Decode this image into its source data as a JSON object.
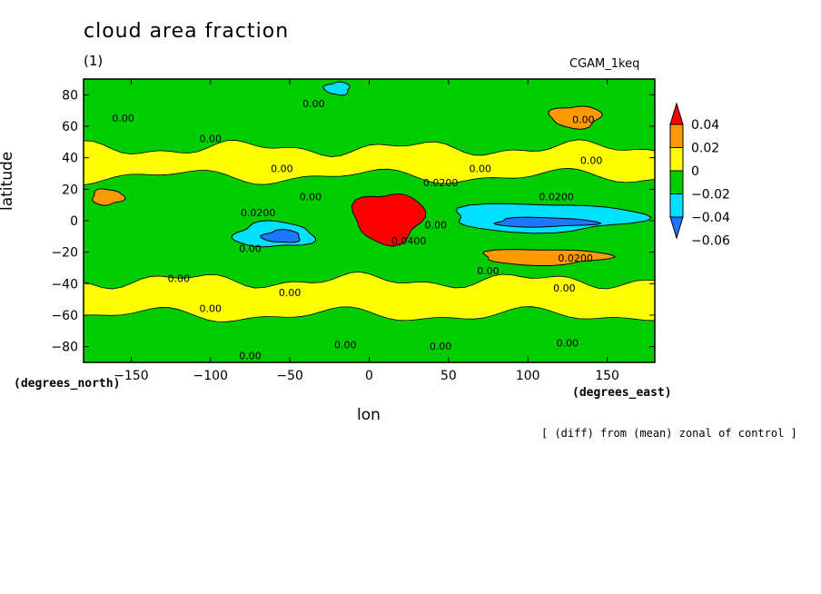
{
  "chart_data": {
    "type": "heatmap",
    "title": "cloud area fraction",
    "subtitle": "(1)",
    "run_label": "CGAM_1keq",
    "xlabel": "lon",
    "ylabel": "latitude",
    "x_units": "(degrees_east)",
    "y_units": "(degrees_north)",
    "note": "[ (diff) from (mean) zonal of control ]",
    "xlim": [
      -180,
      180
    ],
    "ylim": [
      -90,
      90
    ],
    "x_ticks": [
      -150,
      -100,
      -50,
      0,
      50,
      100,
      150
    ],
    "y_ticks": [
      -80,
      -60,
      -40,
      -20,
      0,
      20,
      40,
      60,
      80
    ],
    "colorbar": {
      "levels": [
        -0.06,
        -0.04,
        -0.02,
        0,
        0.02,
        0.04
      ],
      "labels": [
        "-0.06",
        "-0.04",
        "-0.02",
        "0",
        "0.02",
        "0.04"
      ],
      "colors": [
        "#1e78ff",
        "#00e1ff",
        "#00cc00",
        "#ffff00",
        "#ff9900",
        "#ff0000"
      ]
    },
    "contour_labels": [
      {
        "text": "0.00",
        "lon": -155,
        "lat": 63
      },
      {
        "text": "0.00",
        "lon": -35,
        "lat": 72
      },
      {
        "text": "0.00",
        "lon": 135,
        "lat": 62
      },
      {
        "text": "0.00",
        "lon": -100,
        "lat": 50
      },
      {
        "text": "0.00",
        "lon": 140,
        "lat": 36
      },
      {
        "text": "0.00",
        "lon": -55,
        "lat": 31
      },
      {
        "text": "0.00",
        "lon": 70,
        "lat": 31
      },
      {
        "text": "0.0200",
        "lon": 45,
        "lat": 22
      },
      {
        "text": "0.0200",
        "lon": 118,
        "lat": 13
      },
      {
        "text": "0.00",
        "lon": -37,
        "lat": 13
      },
      {
        "text": "0.0200",
        "lon": -70,
        "lat": 3
      },
      {
        "text": "0.0400",
        "lon": 25,
        "lat": -15
      },
      {
        "text": "0.00",
        "lon": 42,
        "lat": -5
      },
      {
        "text": "0.00",
        "lon": -75,
        "lat": -20
      },
      {
        "text": "0.0200",
        "lon": 130,
        "lat": -26
      },
      {
        "text": "0.00",
        "lon": -120,
        "lat": -39
      },
      {
        "text": "0.00",
        "lon": 75,
        "lat": -34
      },
      {
        "text": "0.00",
        "lon": 123,
        "lat": -45
      },
      {
        "text": "0.00",
        "lon": -50,
        "lat": -48
      },
      {
        "text": "0.00",
        "lon": -100,
        "lat": -58
      },
      {
        "text": "0.00",
        "lon": -15,
        "lat": -81
      },
      {
        "text": "0.00",
        "lon": 45,
        "lat": -82
      },
      {
        "text": "0.00",
        "lon": 125,
        "lat": -80
      },
      {
        "text": "0.00",
        "lon": -75,
        "lat": -88
      }
    ],
    "features": [
      {
        "kind": "band",
        "level": "0",
        "lat_from": 28,
        "lat_to": 46,
        "note": "northern subtropical positive band"
      },
      {
        "kind": "band",
        "level": "0",
        "lat_from": -60,
        "lat_to": -38,
        "note": "southern mid-latitude positive band"
      },
      {
        "kind": "blob",
        "level": "0.04",
        "lon": 12,
        "lat": 2,
        "rx": 22,
        "ry": 16
      },
      {
        "kind": "blob",
        "level": "-0.04",
        "lon": 110,
        "lat": 2,
        "rx": 60,
        "ry": 9
      },
      {
        "kind": "blob",
        "level": "-0.06",
        "lon": 110,
        "lat": -1,
        "rx": 32,
        "ry": 3
      },
      {
        "kind": "blob",
        "level": "-0.04",
        "lon": -60,
        "lat": -9,
        "rx": 25,
        "ry": 8
      },
      {
        "kind": "blob",
        "level": "-0.06",
        "lon": -55,
        "lat": -10,
        "rx": 12,
        "ry": 4
      },
      {
        "kind": "blob",
        "level": "-0.04",
        "lon": -20,
        "lat": 84,
        "rx": 8,
        "ry": 4
      },
      {
        "kind": "blob",
        "level": "0.02",
        "lon": 130,
        "lat": 66,
        "rx": 16,
        "ry": 7
      },
      {
        "kind": "blob",
        "level": "0.02",
        "lon": 110,
        "lat": -23,
        "rx": 40,
        "ry": 5
      },
      {
        "kind": "blob",
        "level": "0.02",
        "lon": -165,
        "lat": 15,
        "rx": 10,
        "ry": 5
      }
    ]
  }
}
